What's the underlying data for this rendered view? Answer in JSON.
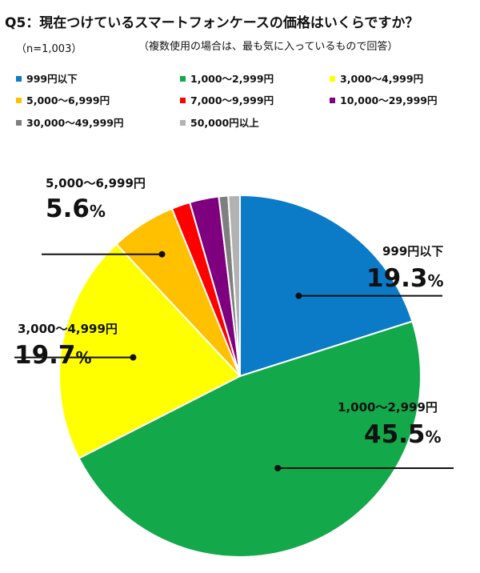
{
  "title": "Q5：現在つけているスマートフォンケースの価格はいくらですか？",
  "sample": "（n=1,003）",
  "note": "（複数使用の場合は、最も気に入っているもので回答）",
  "percent_unit": "%",
  "chart_data": {
    "type": "pie",
    "title": "Q5：現在つけているスマートフォンケースの価格はいくらですか？",
    "slices": [
      {
        "label": "999円以下",
        "value": 19.3,
        "color": "#0b7bc8"
      },
      {
        "label": "1,000〜2,999円",
        "value": 45.5,
        "color": "#13a94a"
      },
      {
        "label": "3,000〜4,999円",
        "value": 19.7,
        "color": "#ffff00"
      },
      {
        "label": "5,000〜6,999円",
        "value": 5.6,
        "color": "#ffc000"
      },
      {
        "label": "7,000〜9,999円",
        "value": 1.6,
        "color": "#ff0000"
      },
      {
        "label": "10,000〜29,999円",
        "value": 2.5,
        "color": "#7f007f"
      },
      {
        "label": "30,000〜49,999円",
        "value": 0.8,
        "color": "#7f7f7f"
      },
      {
        "label": "50,000円以上",
        "value": 1.0,
        "color": "#b2b2b2"
      }
    ],
    "callouts": [
      {
        "label": "999円以下",
        "pct": "19.3"
      },
      {
        "label": "1,000〜2,999円",
        "pct": "45.5"
      },
      {
        "label": "3,000〜4,999円",
        "pct": "19.7"
      },
      {
        "label": "5,000〜6,999円",
        "pct": "5.6"
      }
    ],
    "legend_placement": "top"
  }
}
